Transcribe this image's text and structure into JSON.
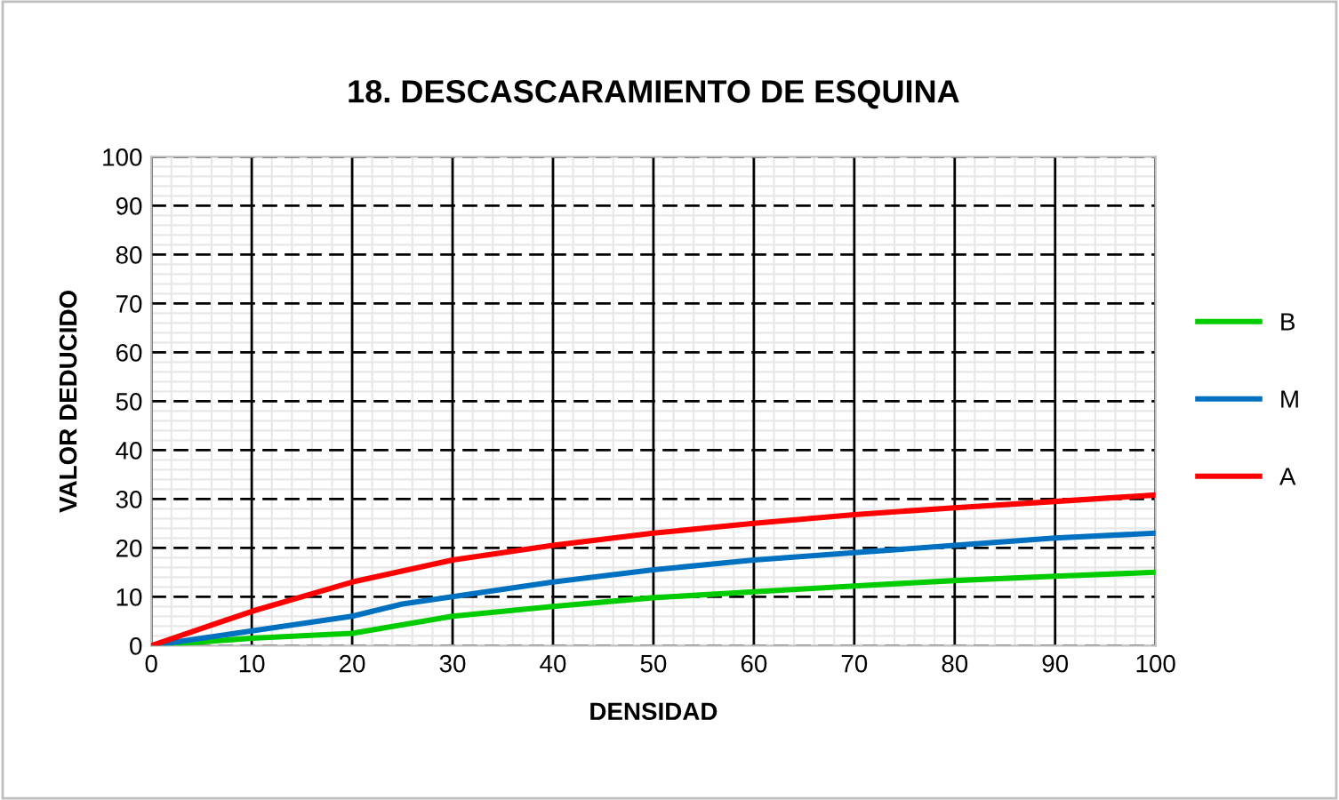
{
  "chart_data": {
    "type": "line",
    "title": "18. DESCASCARAMIENTO DE ESQUINA",
    "xlabel": "DENSIDAD",
    "ylabel": "VALOR DEDUCIDO",
    "xlim": [
      0,
      100
    ],
    "xticks": [
      0,
      10,
      20,
      30,
      40,
      50,
      60,
      70,
      80,
      90,
      100
    ],
    "ylim": [
      0,
      100
    ],
    "yticks": [
      0,
      10,
      20,
      30,
      40,
      50,
      60,
      70,
      80,
      90,
      100
    ],
    "grid": true,
    "legend": "right",
    "marker": "none",
    "line_style": "solid",
    "series": [
      {
        "name": "B",
        "color": "#00cc00",
        "x": [
          0,
          10,
          20,
          30,
          40,
          50,
          60,
          70,
          80,
          90,
          100
        ],
        "values": [
          0,
          1.5,
          2.5,
          6,
          8,
          9.8,
          11,
          12.2,
          13.3,
          14.2,
          15
        ]
      },
      {
        "name": "M",
        "color": "#0070c0",
        "x": [
          0,
          10,
          20,
          25,
          30,
          40,
          50,
          60,
          70,
          80,
          90,
          100
        ],
        "values": [
          0,
          3,
          6,
          8.5,
          10,
          13,
          15.5,
          17.5,
          19,
          20.5,
          22,
          23
        ]
      },
      {
        "name": "A",
        "color": "#ff0000",
        "x": [
          0,
          10,
          20,
          30,
          40,
          50,
          60,
          70,
          80,
          90,
          100
        ],
        "values": [
          0,
          7,
          13,
          17.5,
          20.5,
          23,
          25,
          26.8,
          28.2,
          29.5,
          30.8
        ]
      }
    ]
  }
}
